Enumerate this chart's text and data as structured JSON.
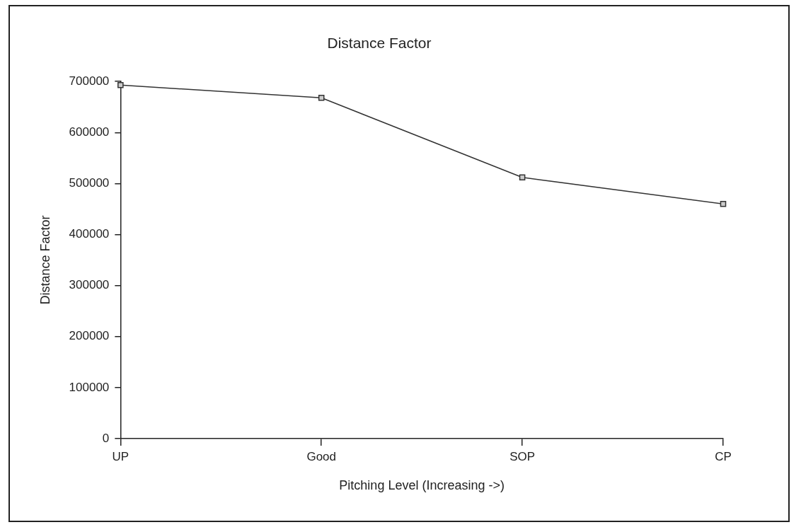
{
  "chart_data": {
    "type": "line",
    "title": "Distance Factor",
    "xlabel": "Pitching Level (Increasing ->)",
    "ylabel": "Distance Factor",
    "categories": [
      "UP",
      "Good",
      "SOP",
      "CP"
    ],
    "series": [
      {
        "color": "#333333",
        "values": [
          693000,
          668000,
          512000,
          460000
        ]
      }
    ],
    "ylim": [
      0,
      700000
    ],
    "yticks": [
      0,
      100000,
      200000,
      300000,
      400000,
      500000,
      600000,
      700000
    ],
    "grid": false,
    "legend": false,
    "marker": "square",
    "line_style": "solid"
  }
}
